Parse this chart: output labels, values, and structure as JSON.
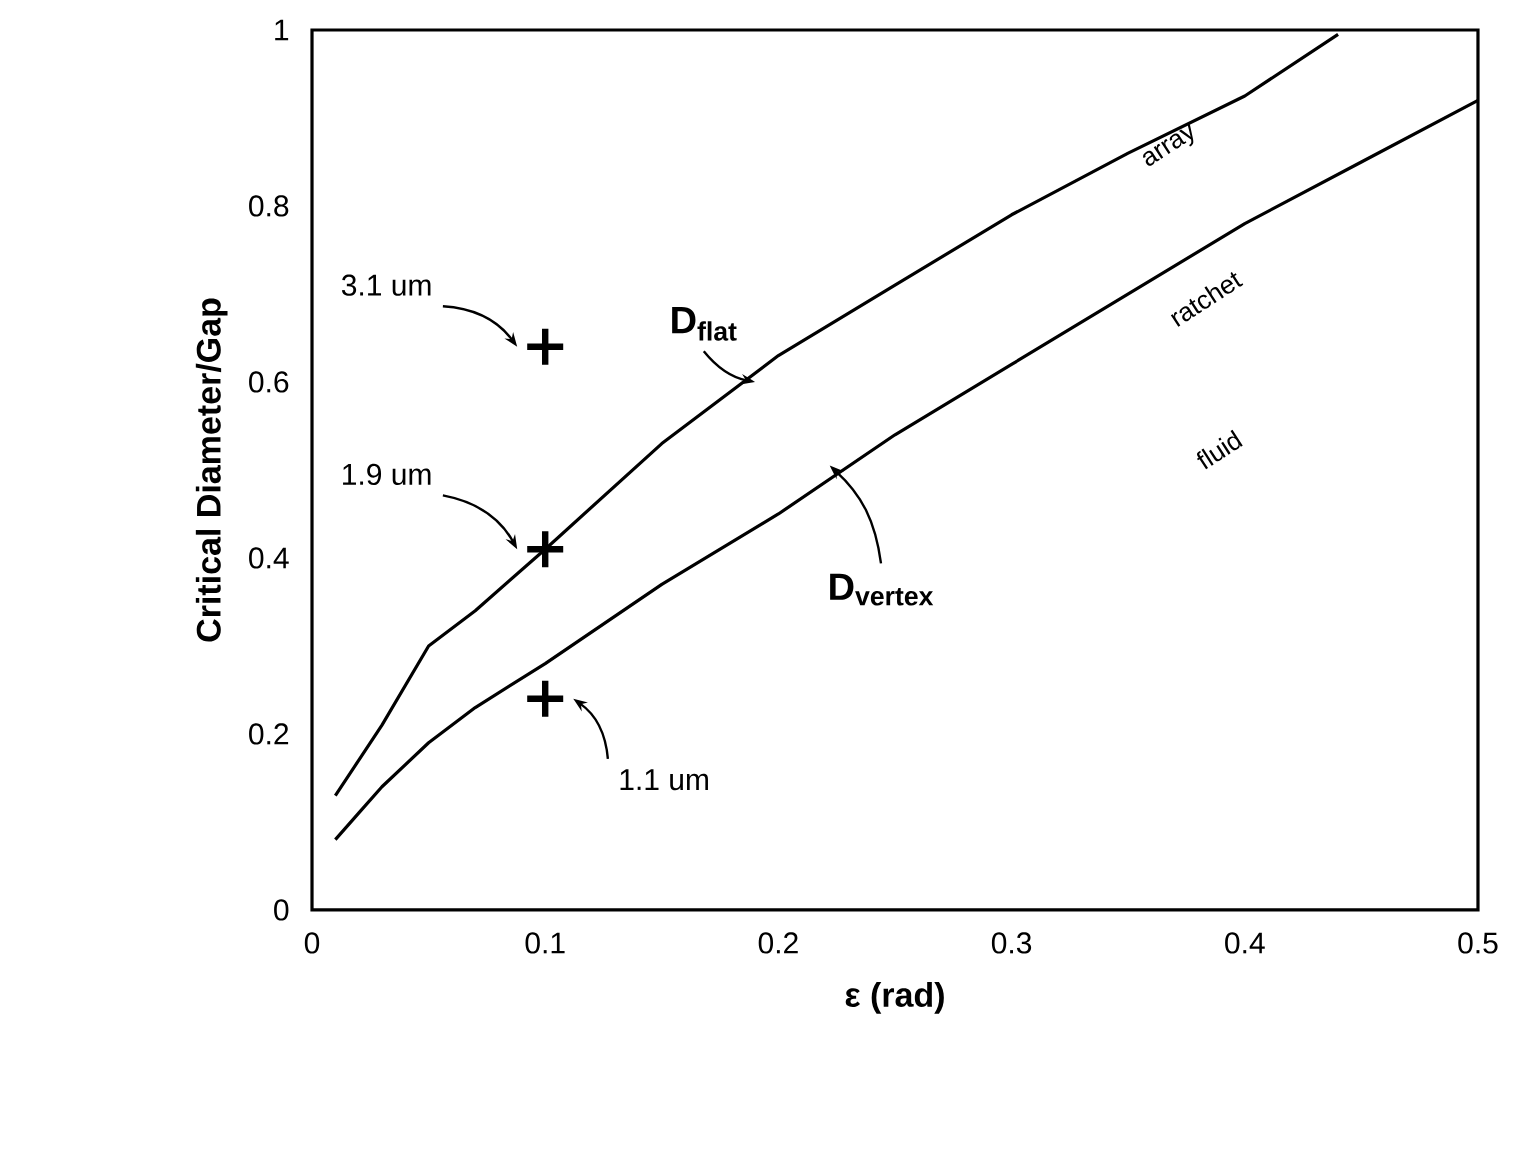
{
  "chart_data": {
    "type": "line",
    "xlabel": "ε (rad)",
    "ylabel": "Critical Diameter/Gap",
    "xlim": [
      0,
      0.5
    ],
    "ylim": [
      0,
      1
    ],
    "xticks": [
      0,
      0.1,
      0.2,
      0.3,
      0.4,
      0.5
    ],
    "yticks": [
      0,
      0.2,
      0.4,
      0.6,
      0.8,
      1
    ],
    "grid": false,
    "series": [
      {
        "name": "D$_{flat}$",
        "color": "#000000",
        "x": [
          0.01,
          0.02,
          0.03,
          0.05,
          0.07,
          0.1,
          0.15,
          0.2,
          0.25,
          0.3,
          0.35,
          0.4,
          0.44
        ],
        "values": [
          0.13,
          0.17,
          0.21,
          0.3,
          0.34,
          0.41,
          0.53,
          0.63,
          0.71,
          0.79,
          0.86,
          0.925,
          0.995
        ]
      },
      {
        "name": "D$_{vertex}$",
        "color": "#000000",
        "x": [
          0.01,
          0.02,
          0.03,
          0.05,
          0.07,
          0.1,
          0.15,
          0.2,
          0.25,
          0.3,
          0.35,
          0.4,
          0.45,
          0.5
        ],
        "values": [
          0.08,
          0.11,
          0.14,
          0.19,
          0.23,
          0.28,
          0.37,
          0.45,
          0.54,
          0.62,
          0.7,
          0.78,
          0.85,
          0.92
        ]
      },
      {
        "type": "scatter",
        "color": "#000000",
        "marker": "cross",
        "x": [
          0.1,
          0.1,
          0.1
        ],
        "values": [
          0.64,
          0.41,
          0.24
        ]
      }
    ],
    "annotations": [
      "3.1 um",
      "1.9 um",
      "1.1 um",
      "array",
      "ratchet",
      "fluid"
    ]
  }
}
